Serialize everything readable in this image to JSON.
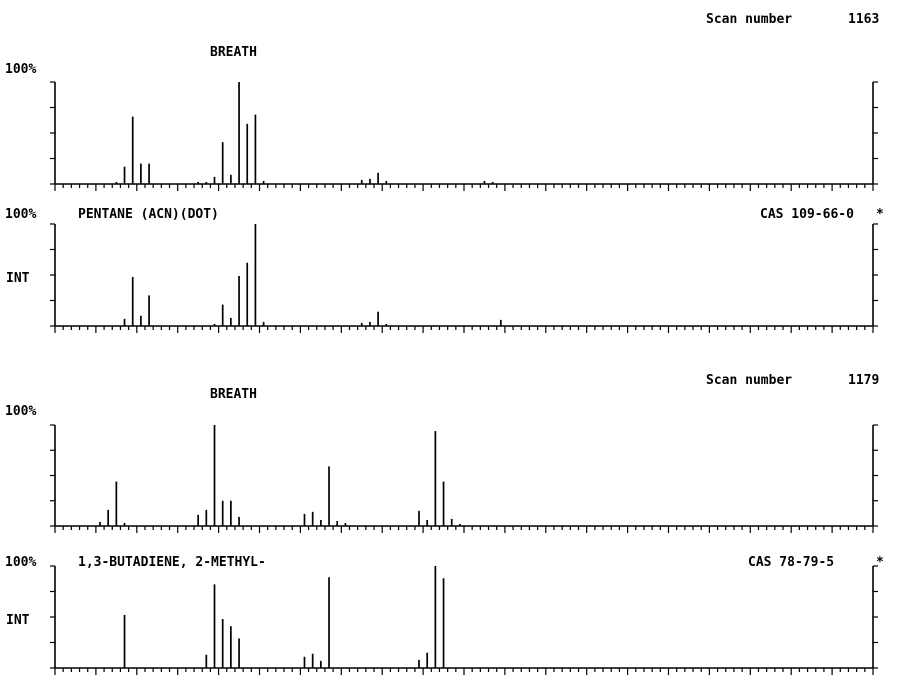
{
  "scans": [
    {
      "label": "Scan number",
      "number": "1163",
      "sample_title": "BREATH",
      "library_title": "PENTANE (ACN)(DOT)",
      "cas": "CAS 109-66-0",
      "library_marker": "*"
    },
    {
      "label": "Scan number",
      "number": "1179",
      "sample_title": "BREATH",
      "library_title": "1,3-BUTADIENE, 2-METHYL-",
      "cas": "CAS 78-79-5",
      "library_marker": "*"
    }
  ],
  "axis_labels": {
    "percent": "100%",
    "intensity": "INT"
  },
  "chart_data": [
    {
      "type": "bar",
      "title": "BREATH",
      "xlabel": "",
      "ylabel": "",
      "xlim": [
        0,
        100
      ],
      "ylim": [
        0,
        100
      ],
      "x": [
        7.5,
        8.5,
        9.5,
        10.5,
        11.5,
        17.5,
        18.5,
        19.5,
        20.5,
        21.5,
        22.5,
        23.5,
        24.5,
        25.5,
        37.5,
        38.5,
        39.5,
        40.5,
        52.5,
        53.5
      ],
      "values": [
        2,
        17,
        66,
        20,
        20,
        2,
        2,
        7,
        41,
        9,
        100,
        59,
        68,
        3,
        4,
        5,
        11,
        3,
        3,
        2
      ]
    },
    {
      "type": "bar",
      "title": "PENTANE (ACN)(DOT)",
      "xlabel": "",
      "ylabel": "",
      "xlim": [
        0,
        100
      ],
      "ylim": [
        0,
        100
      ],
      "x": [
        8.5,
        9.5,
        10.5,
        11.5,
        19.5,
        20.5,
        21.5,
        22.5,
        23.5,
        24.5,
        25.5,
        37.5,
        38.5,
        39.5,
        40.5,
        54.5
      ],
      "values": [
        7,
        48,
        10,
        30,
        2,
        21,
        8,
        49,
        62,
        100,
        4,
        3,
        4,
        14,
        2,
        6
      ]
    },
    {
      "type": "bar",
      "title": "BREATH",
      "xlabel": "",
      "ylabel": "",
      "xlim": [
        0,
        100
      ],
      "ylim": [
        0,
        100
      ],
      "x": [
        5.5,
        6.5,
        7.5,
        8.5,
        17.5,
        18.5,
        19.5,
        20.5,
        21.5,
        22.5,
        30.5,
        31.5,
        32.5,
        33.5,
        34.5,
        35.5,
        44.5,
        45.5,
        46.5,
        47.5,
        48.5,
        49.5
      ],
      "values": [
        4,
        16,
        44,
        3,
        11,
        16,
        100,
        25,
        25,
        9,
        12,
        14,
        6,
        59,
        5,
        3,
        15,
        6,
        94,
        44,
        7,
        2
      ]
    },
    {
      "type": "bar",
      "title": "1,3-BUTADIENE, 2-METHYL-",
      "xlabel": "",
      "ylabel": "",
      "xlim": [
        0,
        100
      ],
      "ylim": [
        0,
        100
      ],
      "x": [
        8.5,
        18.5,
        19.5,
        20.5,
        21.5,
        22.5,
        30.5,
        31.5,
        32.5,
        33.5,
        44.5,
        45.5,
        46.5,
        47.5
      ],
      "values": [
        52,
        13,
        82,
        48,
        41,
        29,
        11,
        14,
        7,
        89,
        8,
        15,
        100,
        88
      ]
    }
  ]
}
